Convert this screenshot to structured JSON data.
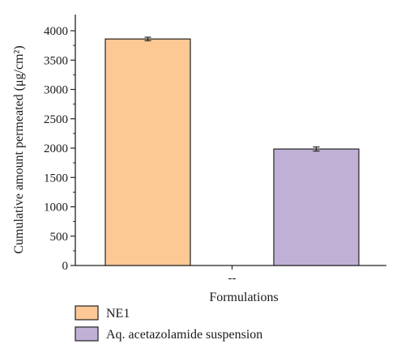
{
  "chart_data": {
    "type": "bar",
    "categories": [
      "--"
    ],
    "series": [
      {
        "name": "NE1",
        "values": [
          3860
        ],
        "error": [
          30
        ],
        "color": "#fcc894"
      },
      {
        "name": "Aq. acetazolamide suspension",
        "values": [
          1985
        ],
        "error": [
          35
        ],
        "color": "#c0b0d6"
      }
    ],
    "xlabel": "Formulations",
    "ylabel": "Cumulative amount permeated (μg/cm²)",
    "ylim": [
      0,
      4000
    ],
    "yticks": [
      0,
      500,
      1000,
      1500,
      2000,
      2500,
      3000,
      3500,
      4000
    ],
    "grid": false,
    "legend_position": "bottom-left"
  }
}
